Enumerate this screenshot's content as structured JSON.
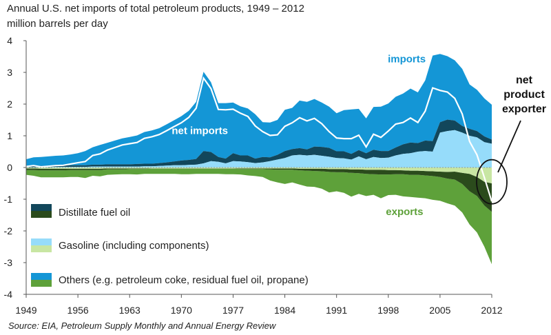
{
  "chart_data": {
    "type": "area",
    "title": "Annual U.S. net imports of total petroleum products, 1949 – 2012",
    "ylabel": "million barrels per day",
    "ylim": [
      -4,
      4
    ],
    "xlim": [
      1949,
      2012
    ],
    "x_ticks": [
      "1949",
      "1956",
      "1963",
      "1970",
      "1977",
      "1984",
      "1991",
      "1998",
      "2005",
      "2012"
    ],
    "y_ticks": [
      "4",
      "3",
      "2",
      "1",
      "0",
      "-1",
      "-2",
      "-3",
      "-4"
    ],
    "x": [
      1949,
      1950,
      1951,
      1952,
      1953,
      1954,
      1955,
      1956,
      1957,
      1958,
      1959,
      1960,
      1961,
      1962,
      1963,
      1964,
      1965,
      1966,
      1967,
      1968,
      1969,
      1970,
      1971,
      1972,
      1973,
      1974,
      1975,
      1976,
      1977,
      1978,
      1979,
      1980,
      1981,
      1982,
      1983,
      1984,
      1985,
      1986,
      1987,
      1988,
      1989,
      1990,
      1991,
      1992,
      1993,
      1994,
      1995,
      1996,
      1997,
      1998,
      1999,
      2000,
      2001,
      2002,
      2003,
      2004,
      2005,
      2006,
      2007,
      2008,
      2009,
      2010,
      2011,
      2012
    ],
    "series": [
      {
        "name": "Gasoline imports",
        "values": [
          0.01,
          0.01,
          0.01,
          0.01,
          0.02,
          0.02,
          0.02,
          0.02,
          0.02,
          0.03,
          0.03,
          0.03,
          0.03,
          0.03,
          0.03,
          0.03,
          0.04,
          0.04,
          0.05,
          0.06,
          0.07,
          0.07,
          0.08,
          0.09,
          0.13,
          0.2,
          0.18,
          0.13,
          0.2,
          0.19,
          0.17,
          0.14,
          0.16,
          0.2,
          0.25,
          0.3,
          0.38,
          0.4,
          0.38,
          0.4,
          0.37,
          0.34,
          0.3,
          0.29,
          0.25,
          0.35,
          0.26,
          0.33,
          0.3,
          0.31,
          0.38,
          0.43,
          0.45,
          0.5,
          0.52,
          0.5,
          1.1,
          1.15,
          1.18,
          1.1,
          1.0,
          0.95,
          0.8,
          0.75
        ]
      },
      {
        "name": "Distillate imports",
        "values": [
          0.03,
          0.04,
          0.04,
          0.04,
          0.04,
          0.04,
          0.05,
          0.05,
          0.05,
          0.06,
          0.06,
          0.07,
          0.07,
          0.07,
          0.07,
          0.08,
          0.08,
          0.08,
          0.09,
          0.1,
          0.12,
          0.15,
          0.16,
          0.18,
          0.39,
          0.29,
          0.15,
          0.15,
          0.25,
          0.19,
          0.21,
          0.14,
          0.17,
          0.12,
          0.15,
          0.22,
          0.2,
          0.21,
          0.19,
          0.26,
          0.28,
          0.28,
          0.21,
          0.22,
          0.18,
          0.2,
          0.19,
          0.23,
          0.22,
          0.21,
          0.25,
          0.3,
          0.34,
          0.27,
          0.33,
          0.33,
          0.33,
          0.36,
          0.3,
          0.21,
          0.22,
          0.2,
          0.18,
          0.13
        ]
      },
      {
        "name": "Other imports",
        "values": [
          0.22,
          0.27,
          0.28,
          0.3,
          0.31,
          0.32,
          0.34,
          0.38,
          0.45,
          0.55,
          0.62,
          0.68,
          0.75,
          0.82,
          0.86,
          0.9,
          1.0,
          1.05,
          1.1,
          1.2,
          1.3,
          1.4,
          1.55,
          1.8,
          2.5,
          2.2,
          1.7,
          1.75,
          1.6,
          1.55,
          1.48,
          1.4,
          1.1,
          1.1,
          1.1,
          1.3,
          1.3,
          1.5,
          1.5,
          1.5,
          1.4,
          1.3,
          1.2,
          1.3,
          1.4,
          1.3,
          1.1,
          1.35,
          1.4,
          1.5,
          1.6,
          1.6,
          1.7,
          1.6,
          1.9,
          2.7,
          2.15,
          2.0,
          1.9,
          1.8,
          1.4,
          1.3,
          1.2,
          1.1
        ]
      },
      {
        "name": "Gasoline exports",
        "values": [
          0.03,
          0.03,
          0.04,
          0.04,
          0.04,
          0.04,
          0.04,
          0.04,
          0.04,
          0.04,
          0.04,
          0.03,
          0.03,
          0.03,
          0.03,
          0.03,
          0.03,
          0.03,
          0.03,
          0.03,
          0.03,
          0.03,
          0.03,
          0.03,
          0.03,
          0.03,
          0.03,
          0.03,
          0.03,
          0.03,
          0.03,
          0.03,
          0.03,
          0.03,
          0.03,
          0.03,
          0.03,
          0.04,
          0.04,
          0.04,
          0.04,
          0.05,
          0.05,
          0.05,
          0.06,
          0.06,
          0.07,
          0.07,
          0.07,
          0.08,
          0.08,
          0.09,
          0.1,
          0.1,
          0.11,
          0.12,
          0.13,
          0.14,
          0.13,
          0.17,
          0.2,
          0.3,
          0.45,
          0.5
        ]
      },
      {
        "name": "Distillate exports",
        "values": [
          0.05,
          0.05,
          0.05,
          0.05,
          0.05,
          0.05,
          0.04,
          0.04,
          0.04,
          0.04,
          0.04,
          0.03,
          0.03,
          0.03,
          0.02,
          0.02,
          0.02,
          0.01,
          0.01,
          0.01,
          0.01,
          0.01,
          0.01,
          0.01,
          0.01,
          0.01,
          0.01,
          0.01,
          0.01,
          0.02,
          0.02,
          0.02,
          0.02,
          0.03,
          0.04,
          0.04,
          0.04,
          0.05,
          0.06,
          0.07,
          0.08,
          0.09,
          0.1,
          0.1,
          0.11,
          0.12,
          0.13,
          0.14,
          0.15,
          0.14,
          0.13,
          0.12,
          0.13,
          0.13,
          0.14,
          0.15,
          0.17,
          0.21,
          0.25,
          0.35,
          0.55,
          0.6,
          0.75,
          0.9
        ]
      },
      {
        "name": "Other exports",
        "values": [
          0.15,
          0.18,
          0.22,
          0.22,
          0.22,
          0.22,
          0.22,
          0.22,
          0.25,
          0.18,
          0.2,
          0.17,
          0.16,
          0.15,
          0.16,
          0.17,
          0.15,
          0.16,
          0.16,
          0.16,
          0.16,
          0.17,
          0.17,
          0.16,
          0.16,
          0.16,
          0.16,
          0.17,
          0.17,
          0.17,
          0.2,
          0.22,
          0.25,
          0.35,
          0.4,
          0.45,
          0.4,
          0.45,
          0.5,
          0.5,
          0.55,
          0.65,
          0.6,
          0.65,
          0.75,
          0.65,
          0.7,
          0.65,
          0.75,
          0.65,
          0.65,
          0.7,
          0.7,
          0.72,
          0.72,
          0.75,
          0.75,
          0.78,
          0.82,
          0.9,
          1.05,
          1.15,
          1.3,
          1.65
        ]
      },
      {
        "name": "Net imports",
        "values": [
          0.03,
          0.06,
          0.02,
          0.04,
          0.06,
          0.07,
          0.11,
          0.15,
          0.19,
          0.38,
          0.43,
          0.55,
          0.63,
          0.71,
          0.75,
          0.79,
          0.92,
          0.97,
          1.04,
          1.16,
          1.29,
          1.41,
          1.58,
          1.87,
          2.82,
          2.49,
          1.83,
          1.82,
          1.84,
          1.71,
          1.61,
          1.31,
          1.13,
          1.01,
          1.03,
          1.3,
          1.41,
          1.57,
          1.47,
          1.55,
          1.38,
          1.13,
          0.93,
          0.91,
          0.91,
          1.02,
          0.65,
          1.05,
          0.95,
          1.15,
          1.37,
          1.42,
          1.56,
          1.42,
          1.78,
          2.51,
          2.43,
          2.38,
          2.18,
          1.69,
          0.82,
          0.4,
          -0.32,
          -1.07
        ]
      }
    ],
    "labels": {
      "imports": "imports",
      "net_imports": "net imports",
      "exports": "exports",
      "annotation": [
        "net",
        "product",
        "exporter"
      ]
    },
    "legend": [
      {
        "label": "Distillate fuel oil",
        "colors": [
          "#12475b",
          "#2b4b1c"
        ]
      },
      {
        "label": "Gasoline (including components)",
        "colors": [
          "#96dcfa",
          "#c8e6a3"
        ]
      },
      {
        "label": "Others (e.g. petroleum coke, residual fuel oil, propane)",
        "colors": [
          "#1496d6",
          "#5ea13a"
        ]
      }
    ],
    "colors": {
      "gasoline_imports": "#96dcfa",
      "distillate_imports": "#12475b",
      "other_imports": "#1496d6",
      "gasoline_exports": "#c8e6a3",
      "distillate_exports": "#2b4b1c",
      "other_exports": "#5ea13a",
      "net_line": "#ffffff",
      "imports_label": "#1496d6",
      "exports_label": "#5ea13a"
    }
  },
  "source": "Source:  EIA, Petroleum Supply Monthly and Annual Energy Review"
}
